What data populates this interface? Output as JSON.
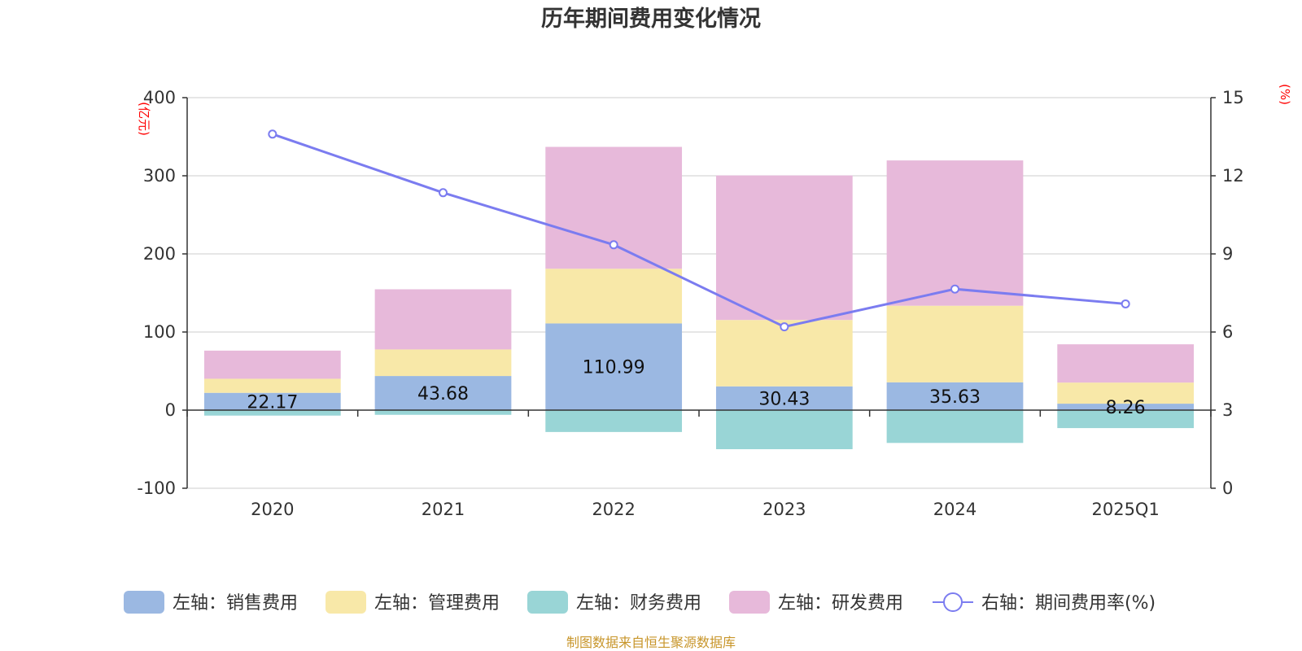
{
  "chart_data": {
    "type": "bar",
    "stacked": true,
    "title": "历年期间费用变化情况",
    "categories": [
      "2020",
      "2021",
      "2022",
      "2023",
      "2024",
      "2025Q1"
    ],
    "left_axis": {
      "unit": "(亿元)",
      "min": -100,
      "max": 400,
      "ticks": [
        -100,
        0,
        100,
        200,
        300,
        400
      ]
    },
    "right_axis": {
      "unit": "(%)",
      "min": 0,
      "max": 15,
      "ticks": [
        0,
        3,
        6,
        9,
        12,
        15
      ]
    },
    "series": [
      {
        "name": "左轴：销售费用",
        "color": "#9bb8e2",
        "values": [
          22.17,
          43.68,
          110.99,
          30.43,
          35.63,
          8.26
        ],
        "labels": [
          "22.17",
          "43.68",
          "110.99",
          "30.43",
          "35.63",
          "8.26"
        ]
      },
      {
        "name": "左轴：管理费用",
        "color": "#f8e8a8",
        "values": [
          18,
          34,
          70,
          85,
          98,
          27
        ]
      },
      {
        "name": "左轴：财务费用",
        "color": "#99d5d6",
        "values": [
          -7,
          -6,
          -28,
          -50,
          -42,
          -23
        ]
      },
      {
        "name": "左轴：研发费用",
        "color": "#e7b9da",
        "values": [
          36,
          77,
          156,
          185,
          186,
          49
        ]
      }
    ],
    "line": {
      "name": "右轴：期间费用率(%)",
      "color": "#7b7cf0",
      "values": [
        13.6,
        11.35,
        9.35,
        6.2,
        7.65,
        7.08
      ]
    },
    "legend_position": "bottom",
    "grid": true
  },
  "source_note": "制图数据来自恒生聚源数据库"
}
